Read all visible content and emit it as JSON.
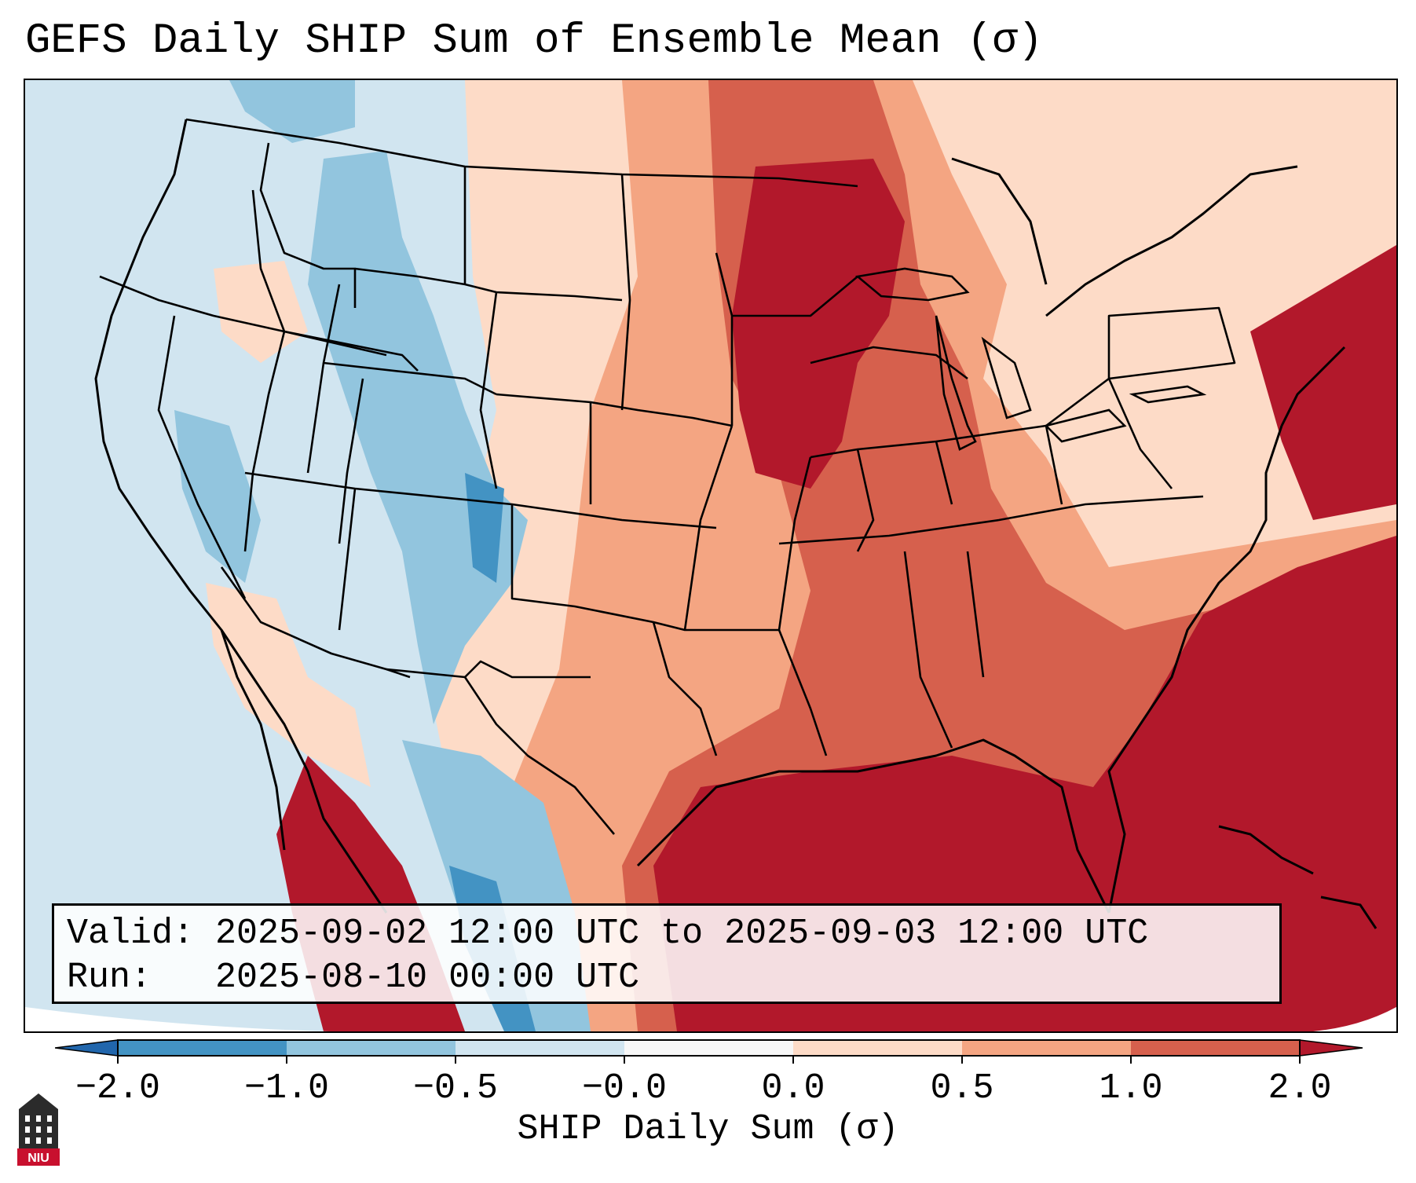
{
  "title": "GEFS Daily SHIP Sum of Ensemble Mean (σ)",
  "info": {
    "valid_label": "Valid:",
    "valid_value": "2025-09-02 12:00 UTC to 2025-09-03 12:00 UTC",
    "run_label": "Run:",
    "run_value": "2025-08-10 00:00 UTC"
  },
  "colorbar": {
    "label": "SHIP Daily Sum (σ)",
    "ticks": [
      "−2.0",
      "−1.0",
      "−0.5",
      "−0.0",
      "0.0",
      "0.5",
      "1.0",
      "2.0"
    ],
    "colors": [
      "#4393c3",
      "#92c5de",
      "#d1e5f0",
      "#f7f7f7",
      "#fddbc7",
      "#f4a582",
      "#d6604d",
      "#b2182b"
    ],
    "extend_low_color": "#2166ac",
    "extend_high_color": "#b2182b"
  },
  "logo": {
    "text": "NIU",
    "color": "#c8102e"
  },
  "map_legend_icon": "choropleth-grid"
}
